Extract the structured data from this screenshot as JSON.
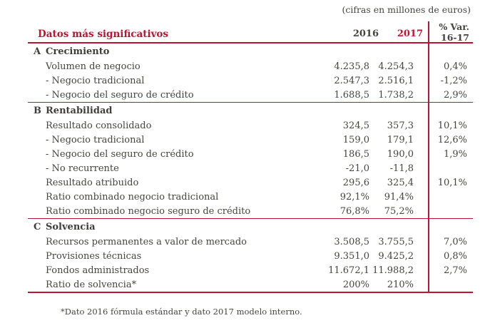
{
  "meta_note": "(cifras en millones de euros)",
  "colors": {
    "accent_red": "#be1432",
    "text": "#45443e"
  },
  "table": {
    "title": "Datos más significativos",
    "col_2016": "2016",
    "col_2017": "2017",
    "col_var_line1": "% Var.",
    "col_var_line2": "16-17",
    "sections": [
      {
        "letter": "A",
        "name": "Crecimiento",
        "rows": [
          {
            "label": "Volumen de negocio",
            "y2016": "4.235,8",
            "y2017": "4.254,3",
            "var": "0,4%"
          },
          {
            "label": "- Negocio tradicional",
            "y2016": "2.547,3",
            "y2017": "2.516,1",
            "var": "-1,2%"
          },
          {
            "label": "- Negocio del seguro de crédito",
            "y2016": "1.688,5",
            "y2017": "1.738,2",
            "var": "2,9%"
          }
        ]
      },
      {
        "letter": "B",
        "name": "Rentabilidad",
        "rows": [
          {
            "label": "Resultado consolidado",
            "y2016": "324,5",
            "y2017": "357,3",
            "var": "10,1%"
          },
          {
            "label": "- Negocio tradicional",
            "y2016": "159,0",
            "y2017": "179,1",
            "var": "12,6%"
          },
          {
            "label": "- Negocio del seguro de crédito",
            "y2016": "186,5",
            "y2017": "190,0",
            "var": "1,9%"
          },
          {
            "label": "- No recurrente",
            "y2016": "-21,0",
            "y2017": "-11,8",
            "var": ""
          },
          {
            "label": "Resultado atribuido",
            "y2016": "295,6",
            "y2017": "325,4",
            "var": "10,1%"
          },
          {
            "label": "Ratio combinado negocio tradicional",
            "y2016": "92,1%",
            "y2017": "91,4%",
            "var": ""
          },
          {
            "label": "Ratio combinado negocio seguro de crédito",
            "y2016": "76,8%",
            "y2017": "75,2%",
            "var": ""
          }
        ]
      },
      {
        "letter": "C",
        "name": "Solvencia",
        "rows": [
          {
            "label": "Recursos permanentes a valor de mercado",
            "y2016": "3.508,5",
            "y2017": "3.755,5",
            "var": "7,0%"
          },
          {
            "label": "Provisiones técnicas",
            "y2016": "9.351,0",
            "y2017": "9.425,2",
            "var": "0,8%"
          },
          {
            "label": "Fondos administrados",
            "y2016": "11.672,1",
            "y2017": "11.988,2",
            "var": "2,7%"
          },
          {
            "label": "Ratio de solvencia*",
            "y2016": "200%",
            "y2017": "210%",
            "var": ""
          }
        ]
      }
    ],
    "footnote": "*Dato 2016 fórmula estándar y dato 2017 modelo interno."
  }
}
